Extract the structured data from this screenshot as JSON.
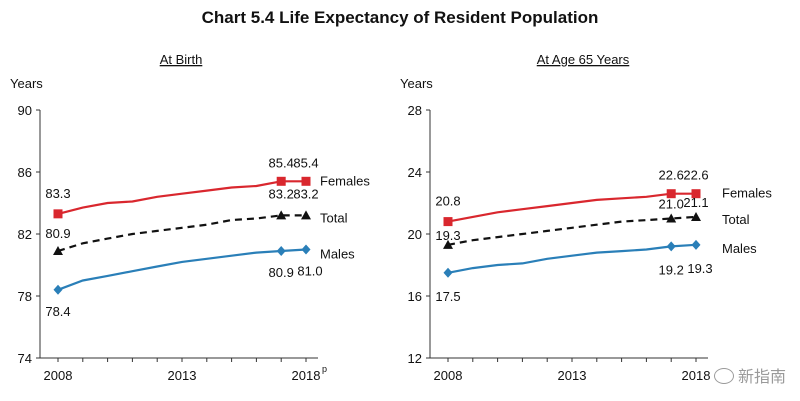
{
  "title": "Chart 5.4  Life Expectancy of Resident Population",
  "watermark": "新指南",
  "chart_data": [
    {
      "type": "line",
      "subtitle": "At Birth",
      "ylabel": "Years",
      "ylim": [
        74,
        90
      ],
      "yticks": [
        74,
        78,
        82,
        86,
        90
      ],
      "xlim": [
        2008,
        2018
      ],
      "xticks": [
        "2008",
        "2013",
        "2018"
      ],
      "xtick_suffix": "p",
      "grid": false,
      "series": [
        {
          "name": "Females",
          "color": "#d9272e",
          "dashed": false,
          "marker": "square",
          "x": [
            2008,
            2009,
            2010,
            2011,
            2012,
            2013,
            2014,
            2015,
            2016,
            2017,
            2018
          ],
          "values": [
            83.3,
            83.7,
            84.0,
            84.1,
            84.4,
            84.6,
            84.8,
            85.0,
            85.1,
            85.4,
            85.4
          ],
          "labels": [
            {
              "i": 0,
              "text": "83.3"
            },
            {
              "i": 9,
              "text": "85.4"
            },
            {
              "i": 10,
              "text": "85.4"
            }
          ]
        },
        {
          "name": "Total",
          "color": "#111111",
          "dashed": true,
          "marker": "triangle",
          "x": [
            2008,
            2009,
            2010,
            2011,
            2012,
            2013,
            2014,
            2015,
            2016,
            2017,
            2018
          ],
          "values": [
            80.9,
            81.4,
            81.7,
            82.0,
            82.2,
            82.4,
            82.6,
            82.9,
            83.0,
            83.2,
            83.2
          ],
          "labels": [
            {
              "i": 0,
              "text": "80.9"
            },
            {
              "i": 9,
              "text": "83.2"
            },
            {
              "i": 10,
              "text": "83.2"
            }
          ]
        },
        {
          "name": "Males",
          "color": "#2a7fb8",
          "dashed": false,
          "marker": "diamond",
          "x": [
            2008,
            2009,
            2010,
            2011,
            2012,
            2013,
            2014,
            2015,
            2016,
            2017,
            2018
          ],
          "values": [
            78.4,
            79.0,
            79.3,
            79.6,
            79.9,
            80.2,
            80.4,
            80.6,
            80.8,
            80.9,
            81.0
          ],
          "labels": [
            {
              "i": 0,
              "text": "78.4"
            },
            {
              "i": 9,
              "text": "80.9"
            },
            {
              "i": 10,
              "text": "81.0"
            }
          ]
        }
      ]
    },
    {
      "type": "line",
      "subtitle": "At Age 65 Years",
      "ylabel": "Years",
      "ylim": [
        12,
        28
      ],
      "yticks": [
        12,
        16,
        20,
        24,
        28
      ],
      "xlim": [
        2008,
        2018
      ],
      "xticks": [
        "2008",
        "2013",
        "2018"
      ],
      "xtick_suffix": "",
      "grid": false,
      "series": [
        {
          "name": "Females",
          "color": "#d9272e",
          "dashed": false,
          "marker": "square",
          "x": [
            2008,
            2009,
            2010,
            2011,
            2012,
            2013,
            2014,
            2015,
            2016,
            2017,
            2018
          ],
          "values": [
            20.8,
            21.1,
            21.4,
            21.6,
            21.8,
            22.0,
            22.2,
            22.3,
            22.4,
            22.6,
            22.6
          ],
          "labels": [
            {
              "i": 0,
              "text": "20.8"
            },
            {
              "i": 9,
              "text": "22.6"
            },
            {
              "i": 10,
              "text": "22.6"
            }
          ]
        },
        {
          "name": "Total",
          "color": "#111111",
          "dashed": true,
          "marker": "triangle",
          "x": [
            2008,
            2009,
            2010,
            2011,
            2012,
            2013,
            2014,
            2015,
            2016,
            2017,
            2018
          ],
          "values": [
            19.3,
            19.6,
            19.8,
            20.0,
            20.2,
            20.4,
            20.6,
            20.8,
            20.9,
            21.0,
            21.1
          ],
          "labels": [
            {
              "i": 0,
              "text": "19.3"
            },
            {
              "i": 9,
              "text": "21.0"
            },
            {
              "i": 10,
              "text": "21.1"
            }
          ]
        },
        {
          "name": "Males",
          "color": "#2a7fb8",
          "dashed": false,
          "marker": "diamond",
          "x": [
            2008,
            2009,
            2010,
            2011,
            2012,
            2013,
            2014,
            2015,
            2016,
            2017,
            2018
          ],
          "values": [
            17.5,
            17.8,
            18.0,
            18.1,
            18.4,
            18.6,
            18.8,
            18.9,
            19.0,
            19.2,
            19.3
          ],
          "labels": [
            {
              "i": 0,
              "text": "17.5"
            },
            {
              "i": 9,
              "text": "19.2"
            },
            {
              "i": 10,
              "text": "19.3"
            }
          ]
        }
      ]
    }
  ]
}
